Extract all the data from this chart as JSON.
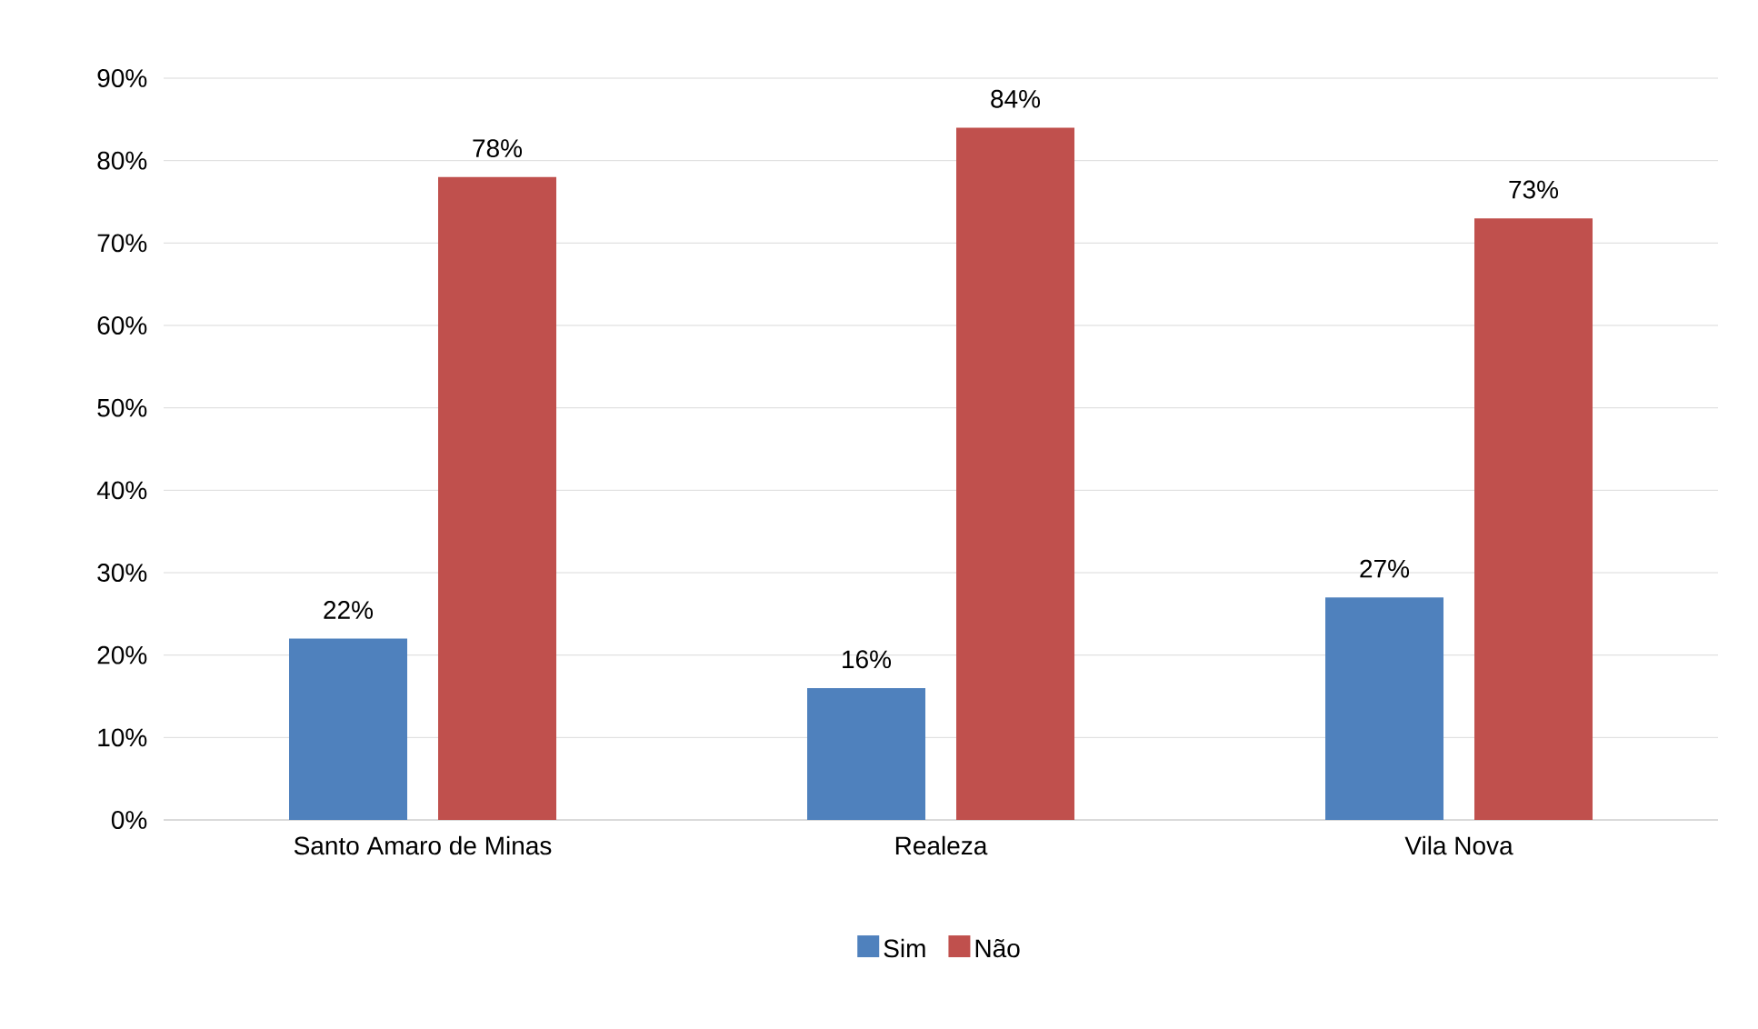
{
  "chart_data": {
    "type": "bar",
    "categories": [
      "Santo Amaro de Minas",
      "Realeza",
      "Vila Nova"
    ],
    "series": [
      {
        "name": "Sim",
        "color": "#4f81bd",
        "values": [
          22,
          16,
          27
        ],
        "value_labels": [
          "22%",
          "16%",
          "27%"
        ]
      },
      {
        "name": "Não",
        "color": "#c0504d",
        "values": [
          78,
          84,
          73
        ],
        "value_labels": [
          "78%",
          "84%",
          "73%"
        ]
      }
    ],
    "ylim": [
      0,
      90
    ],
    "yticks": [
      {
        "value": 0,
        "label": "0%"
      },
      {
        "value": 10,
        "label": "10%"
      },
      {
        "value": 20,
        "label": "20%"
      },
      {
        "value": 30,
        "label": "30%"
      },
      {
        "value": 40,
        "label": "40%"
      },
      {
        "value": 50,
        "label": "50%"
      },
      {
        "value": 60,
        "label": "60%"
      },
      {
        "value": 70,
        "label": "70%"
      },
      {
        "value": 80,
        "label": "80%"
      },
      {
        "value": 90,
        "label": "90%"
      }
    ],
    "grid": "y",
    "legend": "bottom"
  }
}
